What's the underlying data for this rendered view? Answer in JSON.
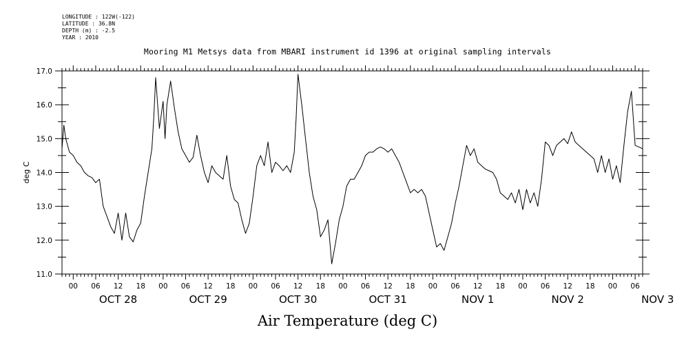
{
  "meta": {
    "lines": [
      "LONGITUDE : 122W(-122)",
      "LATITUDE : 36.8N",
      "DEPTH (m) : -2.5",
      "YEAR : 2010"
    ]
  },
  "chart_data": {
    "type": "line",
    "title": "Mooring M1 Metsys data from MBARI instrument id 1396 at original sampling intervals",
    "xlabel": "Air Temperature (deg C)",
    "ylabel": "deg C",
    "ylim": [
      11.0,
      17.0
    ],
    "xlim_hours": [
      -3,
      152
    ],
    "y_ticks": [
      "11.0",
      "12.0",
      "13.0",
      "14.0",
      "15.0",
      "16.0",
      "17.0"
    ],
    "hour_ticks": [
      "00",
      "06",
      "12",
      "18",
      "00",
      "06",
      "12",
      "18",
      "00",
      "06",
      "12",
      "18",
      "00",
      "06",
      "12",
      "18",
      "00",
      "06",
      "12",
      "18",
      "00",
      "06",
      "12",
      "18",
      "00",
      "06"
    ],
    "day_labels": [
      "OCT 28",
      "OCT 29",
      "OCT 30",
      "OCT 31",
      "NOV  1",
      "NOV  2",
      "NOV  3"
    ],
    "grid": false,
    "series": [
      {
        "x_start": "2010-10-27 21:00",
        "x_end": "2010-11-03 08:00",
        "points": [
          [
            "2010-10-27 21:00",
            14.7
          ],
          [
            "2010-10-27 21:30",
            15.4
          ],
          [
            "2010-10-27 22:00",
            15.0
          ],
          [
            "2010-10-27 23:00",
            14.6
          ],
          [
            "2010-10-28 00:00",
            14.5
          ],
          [
            "2010-10-28 01:00",
            14.3
          ],
          [
            "2010-10-28 02:00",
            14.2
          ],
          [
            "2010-10-28 03:00",
            14.0
          ],
          [
            "2010-10-28 04:00",
            13.9
          ],
          [
            "2010-10-28 05:00",
            13.85
          ],
          [
            "2010-10-28 06:00",
            13.7
          ],
          [
            "2010-10-28 07:00",
            13.8
          ],
          [
            "2010-10-28 08:00",
            13.0
          ],
          [
            "2010-10-28 09:00",
            12.7
          ],
          [
            "2010-10-28 10:00",
            12.4
          ],
          [
            "2010-10-28 11:00",
            12.2
          ],
          [
            "2010-10-28 12:00",
            12.8
          ],
          [
            "2010-10-28 13:00",
            12.0
          ],
          [
            "2010-10-28 14:00",
            12.8
          ],
          [
            "2010-10-28 15:00",
            12.1
          ],
          [
            "2010-10-28 16:00",
            11.95
          ],
          [
            "2010-10-28 17:00",
            12.3
          ],
          [
            "2010-10-28 18:00",
            12.5
          ],
          [
            "2010-10-28 19:00",
            13.3
          ],
          [
            "2010-10-28 20:00",
            14.0
          ],
          [
            "2010-10-28 21:00",
            14.7
          ],
          [
            "2010-10-28 21:30",
            15.6
          ],
          [
            "2010-10-28 22:00",
            16.8
          ],
          [
            "2010-10-28 23:00",
            15.3
          ],
          [
            "2010-10-29 00:00",
            16.1
          ],
          [
            "2010-10-29 00:30",
            15.0
          ],
          [
            "2010-10-29 01:00",
            16.0
          ],
          [
            "2010-10-29 02:00",
            16.7
          ],
          [
            "2010-10-29 03:00",
            15.9
          ],
          [
            "2010-10-29 04:00",
            15.2
          ],
          [
            "2010-10-29 05:00",
            14.7
          ],
          [
            "2010-10-29 06:00",
            14.5
          ],
          [
            "2010-10-29 07:00",
            14.3
          ],
          [
            "2010-10-29 08:00",
            14.45
          ],
          [
            "2010-10-29 09:00",
            15.1
          ],
          [
            "2010-10-29 10:00",
            14.5
          ],
          [
            "2010-10-29 11:00",
            14.0
          ],
          [
            "2010-10-29 12:00",
            13.7
          ],
          [
            "2010-10-29 13:00",
            14.2
          ],
          [
            "2010-10-29 14:00",
            14.0
          ],
          [
            "2010-10-29 15:00",
            13.9
          ],
          [
            "2010-10-29 16:00",
            13.8
          ],
          [
            "2010-10-29 17:00",
            14.5
          ],
          [
            "2010-10-29 18:00",
            13.6
          ],
          [
            "2010-10-29 19:00",
            13.2
          ],
          [
            "2010-10-29 20:00",
            13.1
          ],
          [
            "2010-10-29 21:00",
            12.6
          ],
          [
            "2010-10-29 22:00",
            12.2
          ],
          [
            "2010-10-29 23:00",
            12.5
          ],
          [
            "2010-10-30 00:00",
            13.3
          ],
          [
            "2010-10-30 01:00",
            14.2
          ],
          [
            "2010-10-30 02:00",
            14.5
          ],
          [
            "2010-10-30 03:00",
            14.2
          ],
          [
            "2010-10-30 04:00",
            14.9
          ],
          [
            "2010-10-30 05:00",
            14.0
          ],
          [
            "2010-10-30 06:00",
            14.3
          ],
          [
            "2010-10-30 07:00",
            14.2
          ],
          [
            "2010-10-30 08:00",
            14.05
          ],
          [
            "2010-10-30 09:00",
            14.2
          ],
          [
            "2010-10-30 10:00",
            14.0
          ],
          [
            "2010-10-30 11:00",
            14.6
          ],
          [
            "2010-10-30 11:30",
            15.6
          ],
          [
            "2010-10-30 12:00",
            16.9
          ],
          [
            "2010-10-30 13:00",
            16.0
          ],
          [
            "2010-10-30 14:00",
            15.0
          ],
          [
            "2010-10-30 15:00",
            14.0
          ],
          [
            "2010-10-30 16:00",
            13.3
          ],
          [
            "2010-10-30 17:00",
            12.9
          ],
          [
            "2010-10-30 18:00",
            12.1
          ],
          [
            "2010-10-30 19:00",
            12.3
          ],
          [
            "2010-10-30 20:00",
            12.6
          ],
          [
            "2010-10-30 21:00",
            11.3
          ],
          [
            "2010-10-30 22:00",
            11.9
          ],
          [
            "2010-10-30 23:00",
            12.6
          ],
          [
            "2010-10-31 00:00",
            13.0
          ],
          [
            "2010-10-31 01:00",
            13.6
          ],
          [
            "2010-10-31 02:00",
            13.8
          ],
          [
            "2010-10-31 03:00",
            13.8
          ],
          [
            "2010-10-31 04:00",
            14.0
          ],
          [
            "2010-10-31 05:00",
            14.2
          ],
          [
            "2010-10-31 06:00",
            14.5
          ],
          [
            "2010-10-31 07:00",
            14.6
          ],
          [
            "2010-10-31 08:00",
            14.6
          ],
          [
            "2010-10-31 09:00",
            14.7
          ],
          [
            "2010-10-31 10:00",
            14.75
          ],
          [
            "2010-10-31 11:00",
            14.7
          ],
          [
            "2010-10-31 12:00",
            14.6
          ],
          [
            "2010-10-31 13:00",
            14.7
          ],
          [
            "2010-10-31 14:00",
            14.5
          ],
          [
            "2010-10-31 15:00",
            14.3
          ],
          [
            "2010-10-31 16:00",
            14.0
          ],
          [
            "2010-10-31 17:00",
            13.7
          ],
          [
            "2010-10-31 18:00",
            13.4
          ],
          [
            "2010-10-31 19:00",
            13.5
          ],
          [
            "2010-10-31 20:00",
            13.4
          ],
          [
            "2010-10-31 21:00",
            13.5
          ],
          [
            "2010-10-31 22:00",
            13.3
          ],
          [
            "2010-10-31 23:00",
            12.8
          ],
          [
            "2010-11-01 00:00",
            12.3
          ],
          [
            "2010-11-01 01:00",
            11.8
          ],
          [
            "2010-11-01 02:00",
            11.9
          ],
          [
            "2010-11-01 03:00",
            11.7
          ],
          [
            "2010-11-01 04:00",
            12.1
          ],
          [
            "2010-11-01 05:00",
            12.5
          ],
          [
            "2010-11-01 06:00",
            13.1
          ],
          [
            "2010-11-01 07:00",
            13.6
          ],
          [
            "2010-11-01 08:00",
            14.2
          ],
          [
            "2010-11-01 09:00",
            14.8
          ],
          [
            "2010-11-01 10:00",
            14.5
          ],
          [
            "2010-11-01 11:00",
            14.7
          ],
          [
            "2010-11-01 12:00",
            14.3
          ],
          [
            "2010-11-01 13:00",
            14.2
          ],
          [
            "2010-11-01 14:00",
            14.1
          ],
          [
            "2010-11-01 15:00",
            14.05
          ],
          [
            "2010-11-01 16:00",
            14.0
          ],
          [
            "2010-11-01 17:00",
            13.8
          ],
          [
            "2010-11-01 18:00",
            13.4
          ],
          [
            "2010-11-01 19:00",
            13.3
          ],
          [
            "2010-11-01 20:00",
            13.2
          ],
          [
            "2010-11-01 21:00",
            13.4
          ],
          [
            "2010-11-01 22:00",
            13.1
          ],
          [
            "2010-11-01 23:00",
            13.5
          ],
          [
            "2010-11-02 00:00",
            12.9
          ],
          [
            "2010-11-02 01:00",
            13.5
          ],
          [
            "2010-11-02 02:00",
            13.1
          ],
          [
            "2010-11-02 03:00",
            13.4
          ],
          [
            "2010-11-02 04:00",
            13.0
          ],
          [
            "2010-11-02 05:00",
            13.8
          ],
          [
            "2010-11-02 06:00",
            14.9
          ],
          [
            "2010-11-02 07:00",
            14.8
          ],
          [
            "2010-11-02 08:00",
            14.5
          ],
          [
            "2010-11-02 09:00",
            14.8
          ],
          [
            "2010-11-02 10:00",
            14.9
          ],
          [
            "2010-11-02 11:00",
            15.0
          ],
          [
            "2010-11-02 12:00",
            14.85
          ],
          [
            "2010-11-02 13:00",
            15.2
          ],
          [
            "2010-11-02 14:00",
            14.9
          ],
          [
            "2010-11-02 15:00",
            14.8
          ],
          [
            "2010-11-02 16:00",
            14.7
          ],
          [
            "2010-11-02 17:00",
            14.6
          ],
          [
            "2010-11-02 18:00",
            14.5
          ],
          [
            "2010-11-02 19:00",
            14.4
          ],
          [
            "2010-11-02 20:00",
            14.0
          ],
          [
            "2010-11-02 21:00",
            14.5
          ],
          [
            "2010-11-02 22:00",
            14.0
          ],
          [
            "2010-11-02 23:00",
            14.4
          ],
          [
            "2010-11-03 00:00",
            13.8
          ],
          [
            "2010-11-03 01:00",
            14.2
          ],
          [
            "2010-11-03 02:00",
            13.7
          ],
          [
            "2010-11-03 03:00",
            14.8
          ],
          [
            "2010-11-03 04:00",
            15.8
          ],
          [
            "2010-11-03 05:00",
            16.4
          ],
          [
            "2010-11-03 06:00",
            14.8
          ],
          [
            "2010-11-03 07:00",
            14.75
          ],
          [
            "2010-11-03 08:00",
            14.7
          ]
        ]
      }
    ]
  }
}
